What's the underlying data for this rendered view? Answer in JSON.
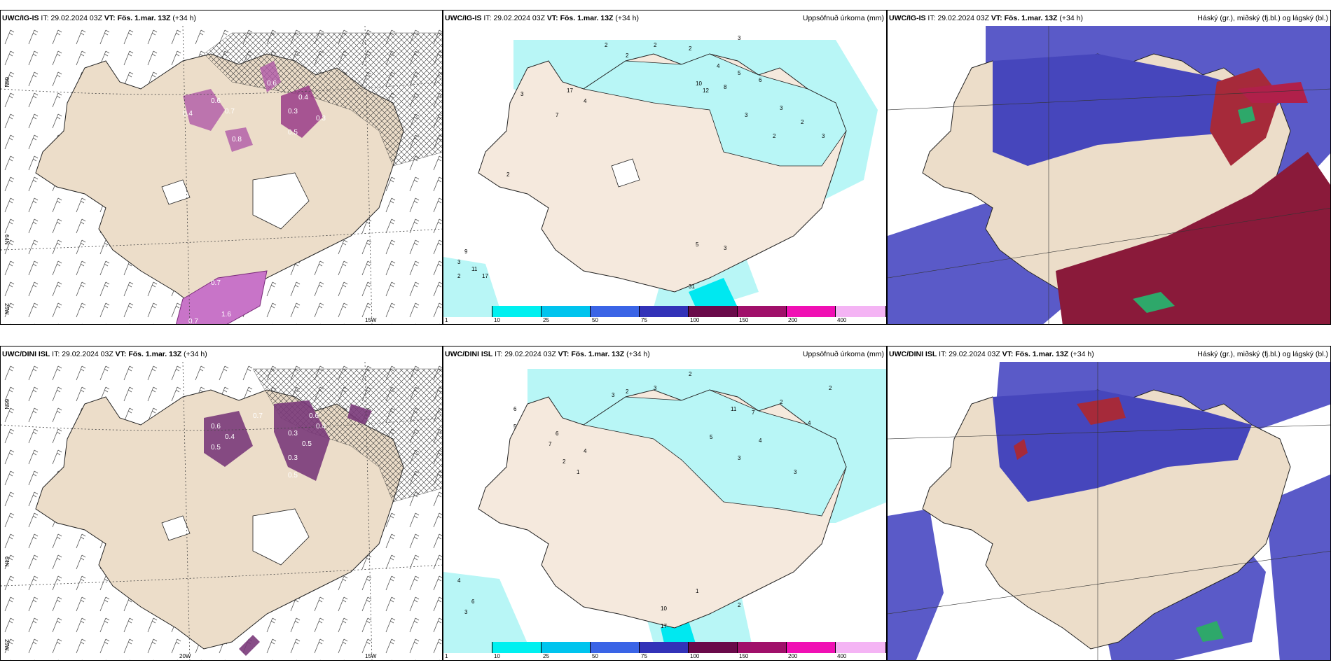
{
  "panels": {
    "p1": {
      "model": "UWC/IG-IS",
      "it_label": "IT:",
      "it": "29.02.2024 03Z",
      "vt_label": "VT:",
      "vt": "Fös. 1.mar. 13Z",
      "lead": "(+34 h)",
      "right": ""
    },
    "p2": {
      "model": "UWC/IG-IS",
      "it_label": "IT:",
      "it": "29.02.2024 03Z",
      "vt_label": "VT:",
      "vt": "Fös. 1.mar. 13Z",
      "lead": "(+34 h)",
      "right": "Uppsöfnuð úrkoma (mm)"
    },
    "p3": {
      "model": "UWC/IG-IS",
      "it_label": "IT:",
      "it": "29.02.2024 03Z",
      "vt_label": "VT:",
      "vt": "Fös. 1.mar. 13Z",
      "lead": "(+34 h)",
      "right": "Háský (gr.), miðský (fj.bl.) og lágský (bl.)"
    },
    "p4": {
      "model": "UWC/DINI ISL",
      "it_label": "IT:",
      "it": "29.02.2024 03Z",
      "vt_label": "VT:",
      "vt": "Fös. 1.mar. 13Z",
      "lead": "(+34 h)",
      "right": ""
    },
    "p5": {
      "model": "UWC/DINI ISL",
      "it_label": "IT:",
      "it": "29.02.2024 03Z",
      "vt_label": "VT:",
      "vt": "Fös. 1.mar. 13Z",
      "lead": "(+34 h)",
      "right": "Uppsöfnuð úrkoma (mm)"
    },
    "p6": {
      "model": "UWC/DINI ISL",
      "it_label": "IT:",
      "it": "29.02.2024 03Z",
      "vt_label": "VT:",
      "vt": "Fös. 1.mar. 13Z",
      "lead": "(+34 h)",
      "right": "Háský (gr.), miðský (fj.bl.) og lágský (bl.)"
    }
  },
  "axes": {
    "lat66": "66N",
    "lat64": "64N",
    "lon25": "25W",
    "lon20": "20W",
    "lon15": "15W"
  },
  "colorbar": {
    "ticks": [
      "1",
      "10",
      "25",
      "50",
      "75",
      "100",
      "150",
      "200",
      "400"
    ],
    "colors": [
      "#b8f6f6",
      "#00f0f0",
      "#00c4ee",
      "#3a64e6",
      "#3232b8",
      "#6a0a4a",
      "#a0106a",
      "#f010b4",
      "#f4b4f4"
    ]
  },
  "ice_values_top": [
    "0.6",
    "0.7",
    "0.4",
    "0.3",
    "0.4",
    "0.5",
    "0.6",
    "0.8",
    "0.3",
    "0.7",
    "1.6",
    "0.7"
  ],
  "ice_values_bottom": [
    "0.6",
    "0.4",
    "0.5",
    "0.3",
    "0.7",
    "0.5",
    "0.6",
    "0.4",
    "0.3",
    "0.5"
  ],
  "precip_values_top": [
    "2",
    "2",
    "2",
    "2",
    "3",
    "4",
    "5",
    "6",
    "3",
    "2",
    "3",
    "17",
    "4",
    "3",
    "7",
    "2",
    "3",
    "9",
    "11",
    "2",
    "17",
    "31",
    "5",
    "3",
    "10",
    "12",
    "8",
    "3",
    "2"
  ],
  "precip_values_bottom": [
    "2",
    "3",
    "2",
    "3",
    "5",
    "6",
    "11",
    "7",
    "4",
    "3",
    "2",
    "6",
    "4",
    "10",
    "17",
    "2",
    "1",
    "3",
    "7",
    "6",
    "4",
    "2",
    "5",
    "1",
    "3",
    "2",
    "4"
  ]
}
